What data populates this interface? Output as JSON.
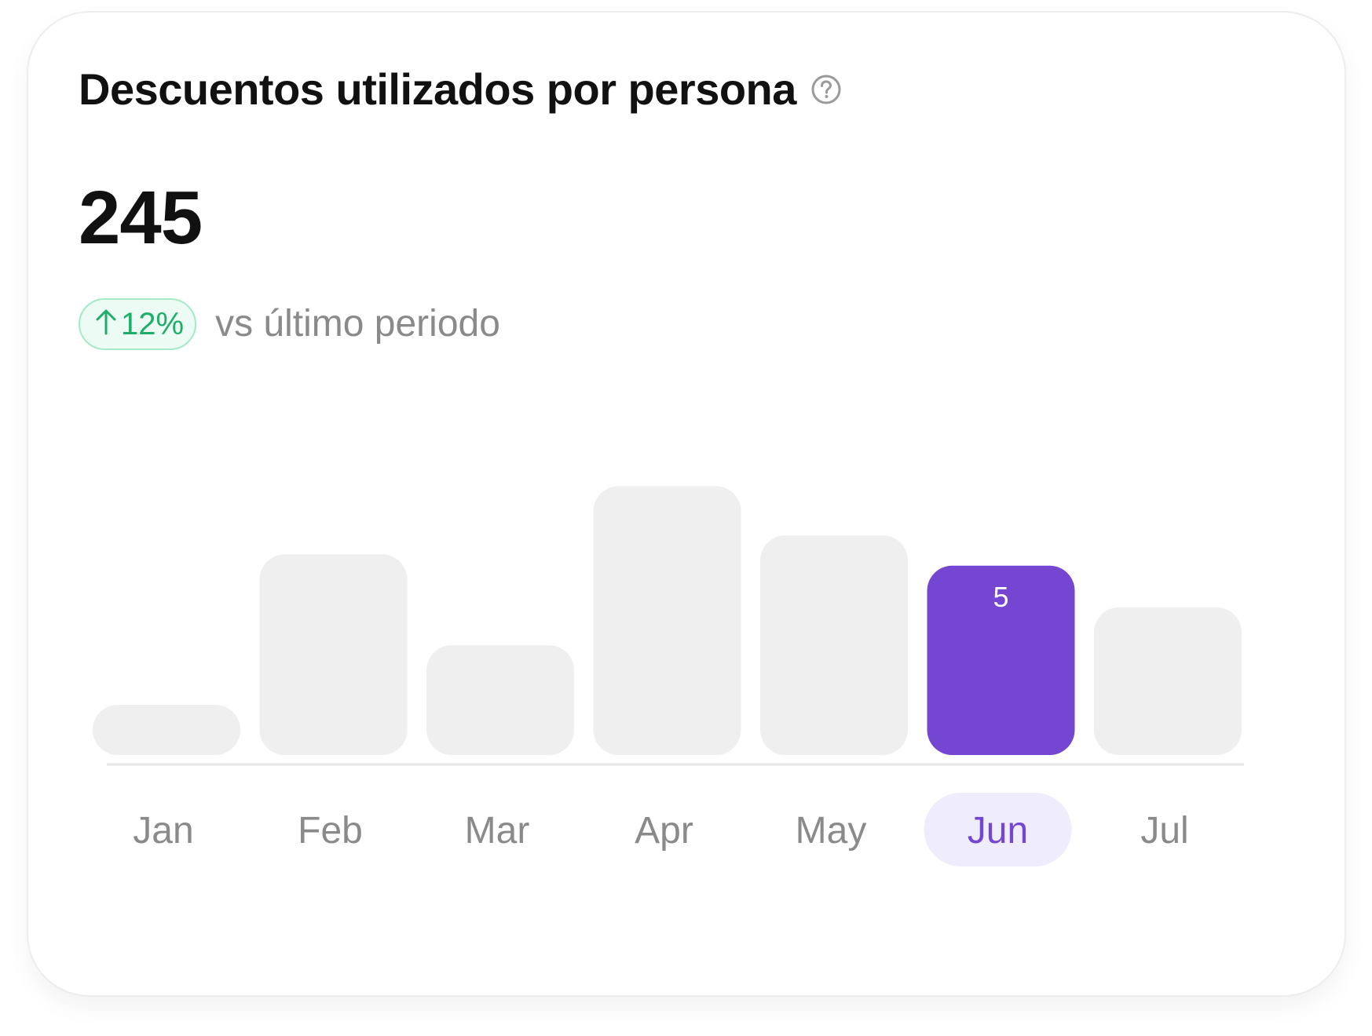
{
  "card": {
    "title": "Descuentos utilizados por persona",
    "metric_value": "245",
    "delta": {
      "direction": "up",
      "percent": "12%",
      "color": "#1fae6a"
    },
    "comparison_label": "vs último periodo",
    "icons": {
      "help": "question-circle-icon",
      "delta": "arrow-up-icon"
    }
  },
  "chart_data": {
    "type": "bar",
    "categories": [
      "Jan",
      "Feb",
      "Mar",
      "Apr",
      "May",
      "Jun",
      "Jul"
    ],
    "series": [
      {
        "values": [
          1.1,
          5.3,
          2.9,
          7.1,
          5.8,
          5,
          3.9
        ]
      }
    ],
    "highlighted_category": "Jun",
    "highlighted_value_label": "5",
    "xlabel": "",
    "ylabel": "",
    "ylim": [
      0,
      8
    ],
    "grid": false,
    "colors": {
      "bar": "#efefef",
      "highlight": "#7446d2",
      "highlight_label_bg": "#efedfb",
      "highlight_label_text": "#7446d2",
      "axis_label": "#8a8a8a",
      "baseline": "#e6e6e6"
    }
  }
}
